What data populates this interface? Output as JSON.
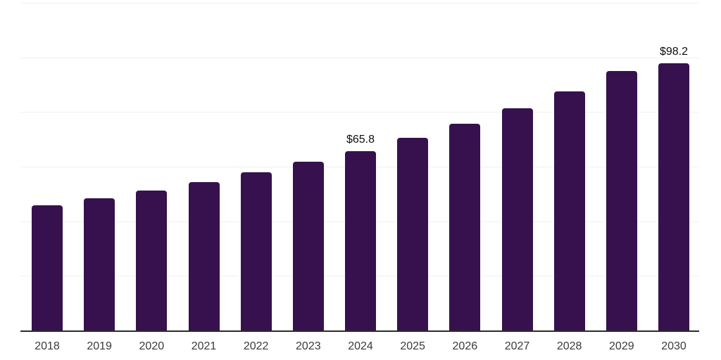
{
  "chart_data": {
    "type": "bar",
    "title": "",
    "xlabel": "",
    "ylabel": "",
    "categories": [
      "2018",
      "2019",
      "2020",
      "2021",
      "2022",
      "2023",
      "2024",
      "2025",
      "2026",
      "2027",
      "2028",
      "2029",
      "2030"
    ],
    "values": [
      46.0,
      48.6,
      51.4,
      54.5,
      58.3,
      62.0,
      65.8,
      70.7,
      76.0,
      81.6,
      87.7,
      95.2,
      98.2
    ],
    "value_prefix": "$",
    "labeled_points": [
      {
        "category": "2024",
        "label": "$65.8"
      },
      {
        "category": "2030",
        "label": "$98.2"
      }
    ],
    "ylim": [
      0,
      120
    ],
    "gridline_step": 20,
    "grid": "horizontal",
    "y_axis_tick_labels_visible": false,
    "legend": "none",
    "colors": {
      "background": "#ffffff",
      "bar": "#36114E",
      "axis_line": "#2b2b2b",
      "gridline": "#f0f0f1",
      "tick_label": "#3a3a3a",
      "data_label": "#0d0d0d"
    }
  }
}
